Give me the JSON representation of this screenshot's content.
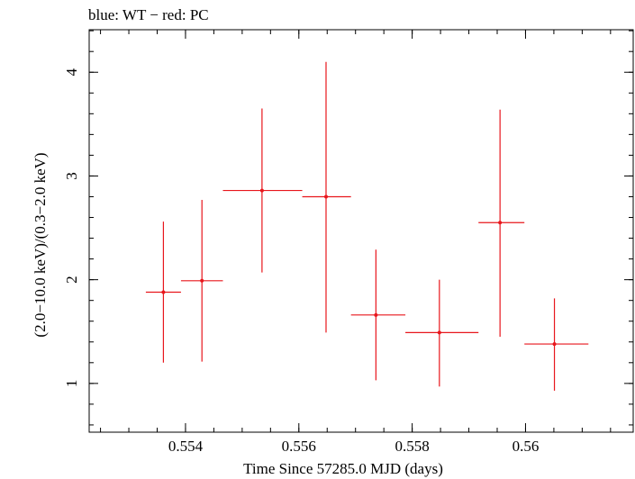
{
  "chart_data": {
    "type": "scatter",
    "title": "blue: WT − red: PC",
    "xlabel": "Time Since 57285.0 MJD (days)",
    "ylabel": "(2.0−10.0 keV)/(0.3−2.0 keV)",
    "xlim": [
      0.5523,
      0.5619
    ],
    "ylim": [
      0.53,
      4.41
    ],
    "x_ticks": [
      {
        "value": 0.554,
        "label": "0.554"
      },
      {
        "value": 0.556,
        "label": "0.556"
      },
      {
        "value": 0.558,
        "label": "0.558"
      },
      {
        "value": 0.56,
        "label": "0.56"
      }
    ],
    "x_minor_step": 0.0005,
    "y_ticks": [
      {
        "value": 1,
        "label": "1"
      },
      {
        "value": 2,
        "label": "2"
      },
      {
        "value": 3,
        "label": "3"
      },
      {
        "value": 4,
        "label": "4"
      }
    ],
    "y_minor_step": 0.2,
    "grid": false,
    "series": [
      {
        "color": "#e8161c",
        "points": [
          {
            "x": 0.55361,
            "y": 1.88,
            "x_lo": 0.5533,
            "x_hi": 0.55392,
            "y_lo": 1.2,
            "y_hi": 2.56
          },
          {
            "x": 0.55429,
            "y": 1.99,
            "x_lo": 0.55392,
            "x_hi": 0.55466,
            "y_lo": 1.21,
            "y_hi": 2.77
          },
          {
            "x": 0.55535,
            "y": 2.86,
            "x_lo": 0.55466,
            "x_hi": 0.55606,
            "y_lo": 2.07,
            "y_hi": 3.65
          },
          {
            "x": 0.55648,
            "y": 2.8,
            "x_lo": 0.55606,
            "x_hi": 0.55692,
            "y_lo": 1.49,
            "y_hi": 4.1
          },
          {
            "x": 0.55736,
            "y": 1.66,
            "x_lo": 0.55692,
            "x_hi": 0.55788,
            "y_lo": 1.03,
            "y_hi": 2.29
          },
          {
            "x": 0.55848,
            "y": 1.49,
            "x_lo": 0.55788,
            "x_hi": 0.55917,
            "y_lo": 0.97,
            "y_hi": 2.0
          },
          {
            "x": 0.55955,
            "y": 2.55,
            "x_lo": 0.55917,
            "x_hi": 0.55998,
            "y_lo": 1.45,
            "y_hi": 3.64
          },
          {
            "x": 0.56051,
            "y": 1.38,
            "x_lo": 0.55998,
            "x_hi": 0.56111,
            "y_lo": 0.93,
            "y_hi": 1.82
          }
        ]
      }
    ]
  }
}
